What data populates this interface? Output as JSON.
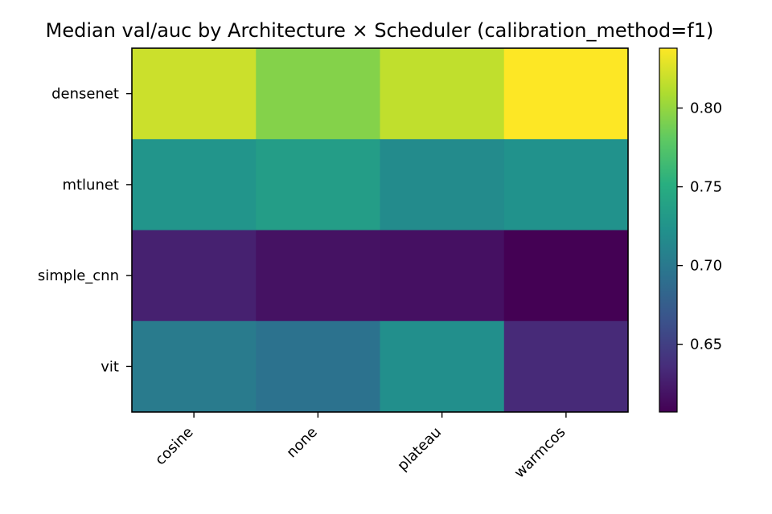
{
  "chart_data": {
    "type": "heatmap",
    "title": "Median val/auc by Architecture × Scheduler  (calibration_method=f1)",
    "xlabel": "",
    "ylabel": "",
    "x_categories": [
      "cosine",
      "none",
      "plateau",
      "warmcos"
    ],
    "y_categories": [
      "densenet",
      "mtlunet",
      "simple_cnn",
      "vit"
    ],
    "values": [
      [
        0.82,
        0.794,
        0.816,
        0.838
      ],
      [
        0.726,
        0.734,
        0.717,
        0.723
      ],
      [
        0.628,
        0.618,
        0.617,
        0.607
      ],
      [
        0.702,
        0.694,
        0.721,
        0.634
      ]
    ],
    "colorbar": {
      "vmin": 0.607,
      "vmax": 0.838,
      "ticks": [
        "0.65",
        "0.70",
        "0.75",
        "0.80"
      ],
      "colormap": "viridis"
    }
  }
}
